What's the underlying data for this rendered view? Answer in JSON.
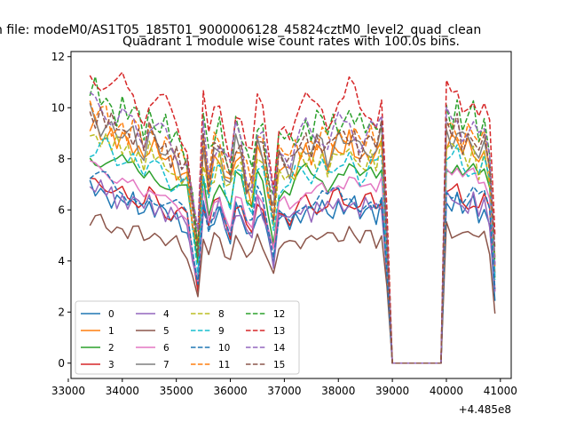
{
  "figure": {
    "suptitle": "n file: modeM0/AS1T05_185T01_9000006128_45824cztM0_level2_quad_clean"
  },
  "chart_data": {
    "type": "line",
    "title": "Quadrant 1 module wise count rates with 100.0s bins.",
    "xlabel": "",
    "ylabel": "",
    "x_offset_label": "+4.485e8",
    "xlim": [
      33050,
      41200
    ],
    "ylim": [
      -0.6,
      12.2
    ],
    "xticks": [
      33000,
      34000,
      35000,
      36000,
      37000,
      38000,
      39000,
      40000,
      41000
    ],
    "xtick_labels": [
      "33000",
      "34000",
      "35000",
      "36000",
      "37000",
      "38000",
      "39000",
      "40000",
      "41000"
    ],
    "yticks": [
      0,
      2,
      4,
      6,
      8,
      10,
      12
    ],
    "ytick_labels": [
      "0",
      "2",
      "4",
      "6",
      "8",
      "10",
      "12"
    ],
    "grid": false,
    "legend_placement": "lower-left",
    "legend_columns": 4,
    "x_range": {
      "start": 33400,
      "step": 100,
      "count": 76
    },
    "template": [
      1.0,
      0.995,
      0.985,
      0.975,
      0.95,
      0.93,
      0.94,
      0.91,
      0.93,
      0.9,
      0.88,
      0.92,
      0.89,
      0.87,
      0.86,
      0.84,
      0.83,
      0.8,
      0.78,
      0.6,
      0.45,
      0.9,
      0.75,
      0.85,
      0.88,
      0.8,
      0.72,
      0.87,
      0.85,
      0.74,
      0.72,
      0.9,
      0.86,
      0.72,
      0.6,
      0.82,
      0.85,
      0.8,
      0.84,
      0.86,
      0.88,
      0.86,
      0.88,
      0.9,
      0.86,
      0.89,
      0.91,
      0.88,
      0.92,
      0.9,
      0.86,
      0.88,
      0.9,
      0.86,
      0.92,
      0.5,
      0.01,
      0.01,
      0.01,
      0.01,
      0.01,
      0.01,
      0.01,
      0.01,
      0.01,
      0.01,
      0.95,
      0.92,
      0.94,
      0.88,
      0.9,
      0.92,
      0.86,
      0.88,
      0.8,
      0.4
    ],
    "series": [
      {
        "name": "0",
        "color": "#1f77b4",
        "dash": "solid",
        "scale": 6.8
      },
      {
        "name": "1",
        "color": "#ff7f0e",
        "dash": "solid",
        "scale": 9.3
      },
      {
        "name": "2",
        "color": "#2ca02c",
        "dash": "solid",
        "scale": 8.3
      },
      {
        "name": "3",
        "color": "#d62728",
        "dash": "solid",
        "scale": 7.1
      },
      {
        "name": "4",
        "color": "#9467bd",
        "dash": "solid",
        "scale": 6.9
      },
      {
        "name": "5",
        "color": "#8c564b",
        "dash": "solid",
        "scale": 5.6
      },
      {
        "name": "6",
        "color": "#e377c2",
        "dash": "solid",
        "scale": 7.8
      },
      {
        "name": "7",
        "color": "#7f7f7f",
        "dash": "solid",
        "scale": 9.6
      },
      {
        "name": "8",
        "color": "#bcbd22",
        "dash": "dashed",
        "scale": 9.0
      },
      {
        "name": "9",
        "color": "#17becf",
        "dash": "dashed",
        "scale": 8.6
      },
      {
        "name": "10",
        "color": "#1f77b4",
        "dash": "dashed",
        "scale": 7.2
      },
      {
        "name": "11",
        "color": "#ff7f0e",
        "dash": "dashed",
        "scale": 9.9
      },
      {
        "name": "12",
        "color": "#2ca02c",
        "dash": "dashed",
        "scale": 10.6
      },
      {
        "name": "13",
        "color": "#d62728",
        "dash": "dashed",
        "scale": 11.4
      },
      {
        "name": "14",
        "color": "#9467bd",
        "dash": "dashed",
        "scale": 10.2
      },
      {
        "name": "15",
        "color": "#8c564b",
        "dash": "dashed",
        "scale": 9.8
      }
    ]
  }
}
